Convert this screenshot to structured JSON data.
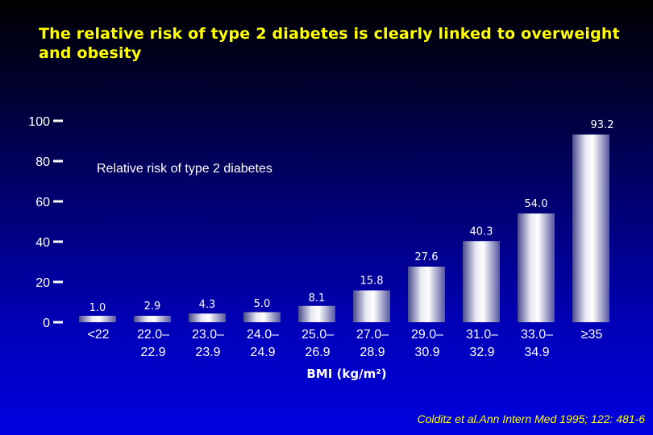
{
  "title": "The relative risk of type 2 diabetes is clearly linked to overweight and obesity",
  "citation": "Colditz et al.Ann Intern Med 1995; 122: 481-6",
  "colors": {
    "title": "#ffff00",
    "bar_light": "#ffffff",
    "bar_dark": "#5a5a9c",
    "text": "#ffffff"
  },
  "chart_data": {
    "type": "bar",
    "title": "",
    "series_label": "Relative risk of type 2 diabetes",
    "xlabel": "BMI (kg/m²)",
    "ylabel": "",
    "ylim": [
      0,
      100
    ],
    "yticks": [
      "100",
      "80",
      "60",
      "40",
      "20",
      "0"
    ],
    "ytick_values": [
      100,
      80,
      60,
      40,
      20,
      0
    ],
    "categories": [
      [
        "<22"
      ],
      [
        "22.0–",
        "22.9"
      ],
      [
        "23.0–",
        "23.9"
      ],
      [
        "24.0–",
        "24.9"
      ],
      [
        "25.0–",
        "26.9"
      ],
      [
        "27.0–",
        "28.9"
      ],
      [
        "29.0–",
        "30.9"
      ],
      [
        "31.0–",
        "32.9"
      ],
      [
        "33.0–",
        "34.9"
      ],
      [
        "≥35"
      ]
    ],
    "values": [
      1.0,
      2.9,
      4.3,
      5.0,
      8.1,
      15.8,
      27.6,
      40.3,
      54.0,
      93.2
    ],
    "value_labels": [
      "1.0",
      "2.9",
      "4.3",
      "5.0",
      "8.1",
      "15.8",
      "27.6",
      "40.3",
      "54.0",
      "93.2"
    ],
    "grid": false
  }
}
